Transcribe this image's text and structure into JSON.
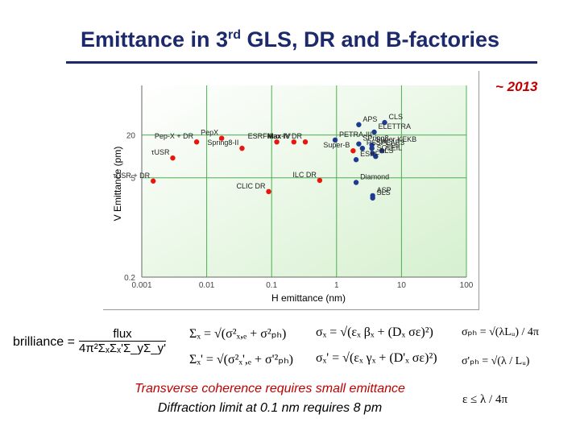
{
  "title": {
    "main": "Emittance in 3",
    "sup": "rd",
    "rest": " GLS, DR and B-factories"
  },
  "year_label": "~ 2013",
  "chart_data": {
    "type": "scatter",
    "xlabel": "H emittance (nm)",
    "ylabel": "V Emittance (pm)",
    "x_log": true,
    "y_log": true,
    "xlim": [
      0.001,
      100
    ],
    "ylim": [
      0.2,
      100
    ],
    "x_ticks": [
      {
        "v": 0.001,
        "label": "0.001"
      },
      {
        "v": 0.01,
        "label": "0.01"
      },
      {
        "v": 0.1,
        "label": "0.1"
      },
      {
        "v": 1,
        "label": "1"
      },
      {
        "v": 10,
        "label": "10"
      },
      {
        "v": 100,
        "label": "100"
      }
    ],
    "y_ticks": [
      {
        "v": 0.2,
        "label": "0.2"
      },
      {
        "v": 5,
        "label": "5"
      },
      {
        "v": 20,
        "label": "20"
      }
    ],
    "grid": true,
    "series": [
      {
        "color": "#e8160f",
        "points": [
          {
            "x": 0.0015,
            "y": 4.5,
            "label": "τUSR + DR"
          },
          {
            "x": 0.003,
            "y": 9.5,
            "label": "τUSR"
          },
          {
            "x": 0.007,
            "y": 16,
            "label": "Pep-X + DR"
          },
          {
            "x": 0.017,
            "y": 18,
            "label": "PepX"
          },
          {
            "x": 0.035,
            "y": 13,
            "label": "Spring8-II"
          },
          {
            "x": 0.09,
            "y": 3.2,
            "label": "CLIC DR"
          },
          {
            "x": 0.12,
            "y": 16,
            "label": "ESRF-II"
          },
          {
            "x": 0.22,
            "y": 16,
            "label": "Max-IV"
          },
          {
            "x": 0.33,
            "y": 16,
            "label": "Max IV DR"
          },
          {
            "x": 0.55,
            "y": 4.6,
            "label": "ILC DR"
          },
          {
            "x": 1.8,
            "y": 12,
            "label": "Super-B"
          }
        ]
      },
      {
        "color": "#1f3a93",
        "points": [
          {
            "x": 2.2,
            "y": 28,
            "label": "APS"
          },
          {
            "x": 5.5,
            "y": 30,
            "label": "CLS"
          },
          {
            "x": 3.8,
            "y": 22,
            "label": "ELETTRA"
          },
          {
            "x": 0.95,
            "y": 17,
            "label": "PETRA-III"
          },
          {
            "x": 2.2,
            "y": 15,
            "label": "SPring8"
          },
          {
            "x": 3.5,
            "y": 14.5,
            "label": "Super KEKB"
          },
          {
            "x": 2.5,
            "y": 13,
            "label": "PSSF"
          },
          {
            "x": 3.5,
            "y": 13,
            "label": "SPEAR3"
          },
          {
            "x": 5.0,
            "y": 12,
            "label": "SLS"
          },
          {
            "x": 3.6,
            "y": 11,
            "label": "SOLEIL"
          },
          {
            "x": 4.0,
            "y": 10,
            "label": "ALS"
          },
          {
            "x": 2.0,
            "y": 9,
            "label": "ESRF"
          },
          {
            "x": 2.0,
            "y": 4.3,
            "label": "Diamond"
          },
          {
            "x": 3.6,
            "y": 2.8,
            "label": "ASP"
          },
          {
            "x": 3.6,
            "y": 2.6,
            "label": "SLS"
          }
        ]
      }
    ]
  },
  "formulas": {
    "brilliance_label": "brilliance =",
    "flux": "flux",
    "denominator": "4π²ΣₓΣₓ'Σ_yΣ_y'",
    "sigma_x_total": "Σₓ = √(σ²ₓ,ₑ + σ²ₚₕ)",
    "sigma_xp_total": "Σₓ' = √(σ²ₓ',ₑ + σ'²ₚₕ)",
    "sigma_x": "σₓ = √(εₓ βₓ + (Dₓ σε)²)",
    "sigma_xp": "σₓ' = √(εₓ γₓ + (D'ₓ σε)²)",
    "sigma_ph": "σₚₕ = √(λLᵤ) / 4π",
    "sigma_ph_p": "σ'ₚₕ = √(λ / Lᵤ)",
    "epsilon_limit": "ε ≤ λ / 4π"
  },
  "notes": {
    "line1": "Transverse coherence requires small emittance",
    "line2": "Diffraction limit at 0.1 nm requires 8 pm"
  }
}
